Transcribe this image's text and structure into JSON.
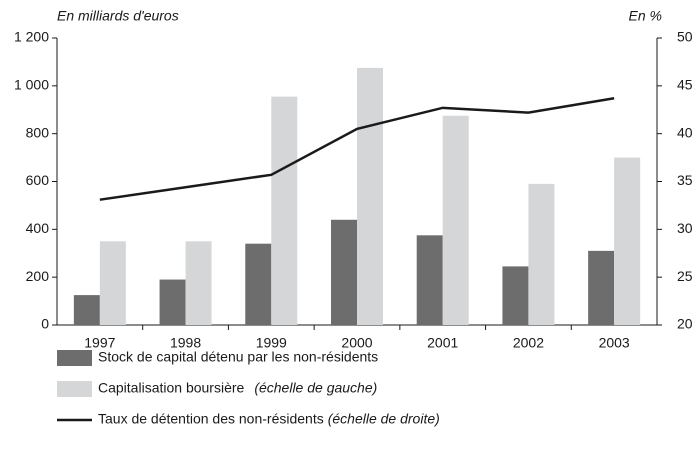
{
  "chart_data": {
    "type": "bar_line",
    "y_label": "En milliards d'euros",
    "y2_label": "En %",
    "categories": [
      "1997",
      "1998",
      "1999",
      "2000",
      "2001",
      "2002",
      "2003"
    ],
    "series": [
      {
        "name": "Stock de capital détenu par les non-résidents",
        "type": "bar",
        "color": "#6d6d6d",
        "values": [
          125,
          190,
          340,
          440,
          375,
          245,
          310
        ]
      },
      {
        "name": "Capitalisation boursière",
        "scale_note": "(échelle de gauche)",
        "type": "bar",
        "color": "#d4d6d8",
        "values": [
          350,
          350,
          955,
          1075,
          875,
          590,
          700
        ]
      },
      {
        "name": "Taux de détention des non-résidents",
        "scale_note": "(échelle de droite)",
        "type": "line",
        "axis": "y2",
        "color": "#1a1a1a",
        "values": [
          33.1,
          34.4,
          35.7,
          40.5,
          42.7,
          42.2,
          43.7
        ]
      }
    ],
    "ylim": [
      0,
      1200
    ],
    "yticks": [
      0,
      200,
      400,
      600,
      800,
      {
        "value": 1000,
        "label": "1 000"
      },
      {
        "value": 1200,
        "label": "1 200"
      }
    ],
    "y2lim": [
      20,
      50
    ],
    "y2ticks": [
      20,
      25,
      30,
      35,
      40,
      45,
      50
    ]
  }
}
